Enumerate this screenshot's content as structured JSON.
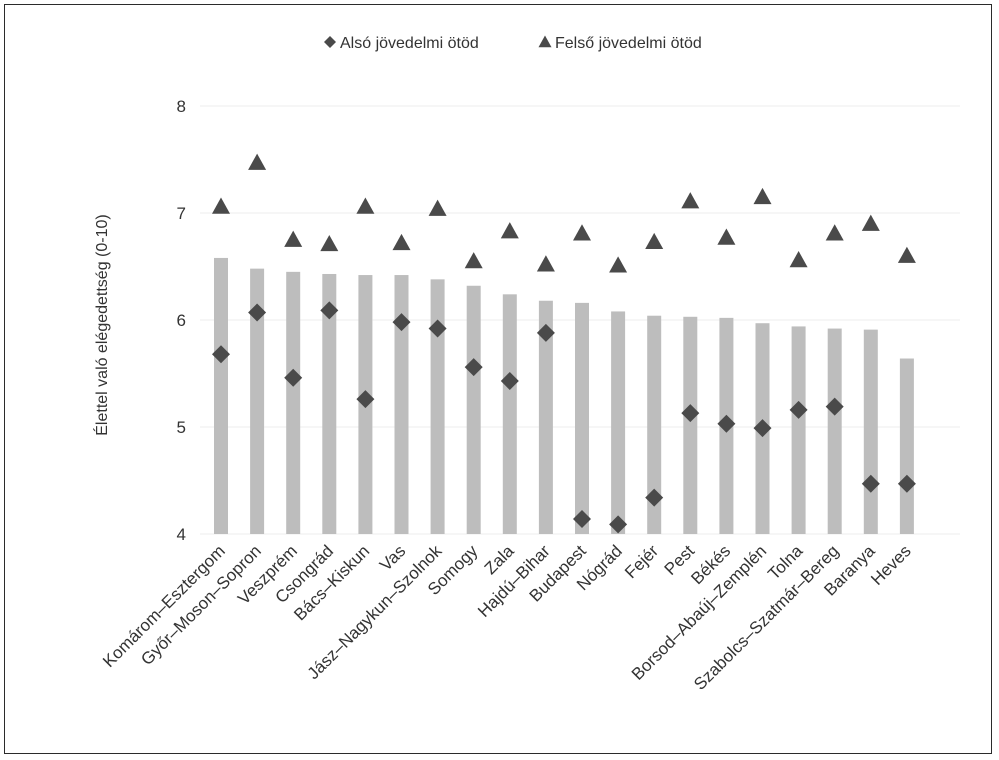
{
  "chart_data": {
    "type": "bar",
    "title": "",
    "xlabel": "",
    "ylabel": "Élettel való elégedettség (0-10)",
    "ylim": [
      4,
      8
    ],
    "yticks": [
      4,
      5,
      6,
      7,
      8
    ],
    "grid": true,
    "legend_position": "top-center",
    "colors": {
      "bar": "#bdbdbd",
      "marker": "#4a4a4a",
      "grid": "#eeeeee",
      "text": "#333333"
    },
    "categories": [
      "Komárom–Esztergom",
      "Győr–Moson–Sopron",
      "Veszprém",
      "Csongrád",
      "Bács–Kiskun",
      "Vas",
      "Jász–Nagykun–Szolnok",
      "Somogy",
      "Zala",
      "Hajdú–Bihar",
      "Budapest",
      "Nógrád",
      "Fejér",
      "Pest",
      "Békés",
      "Borsod–Abaúj–Zemplén",
      "Tolna",
      "Szabolcs–Szatmár–Bereg",
      "Baranya",
      "Heves"
    ],
    "bar_values": [
      6.58,
      6.48,
      6.45,
      6.43,
      6.42,
      6.42,
      6.38,
      6.32,
      6.24,
      6.18,
      6.16,
      6.08,
      6.04,
      6.03,
      6.02,
      5.97,
      5.94,
      5.92,
      5.91,
      5.64
    ],
    "series": [
      {
        "name": "Alsó jövedelmi ötöd",
        "marker": "diamond",
        "values": [
          5.68,
          6.07,
          5.46,
          6.09,
          5.26,
          5.98,
          5.92,
          5.56,
          5.43,
          5.88,
          4.14,
          4.09,
          4.34,
          5.13,
          5.03,
          4.99,
          5.16,
          5.19,
          4.47,
          4.47
        ]
      },
      {
        "name": "Felső jövedelmi ötöd",
        "marker": "triangle",
        "values": [
          7.07,
          7.48,
          6.76,
          6.72,
          7.07,
          6.73,
          7.05,
          6.56,
          6.84,
          6.53,
          6.82,
          6.52,
          6.74,
          7.12,
          6.78,
          7.16,
          6.57,
          6.82,
          6.91,
          6.61
        ]
      }
    ]
  }
}
